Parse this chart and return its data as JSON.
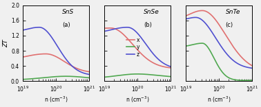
{
  "panels": [
    {
      "title": "SnS",
      "label": "(a)",
      "show_legend": false,
      "curves": {
        "x": {
          "color": "#e07070",
          "peak_log": 19.7,
          "peak_zt": 0.72,
          "start_zt": 0.53,
          "end_zt": 0.22,
          "sigma_l": 0.65,
          "sigma_r": 0.55
        },
        "y": {
          "color": "#50a850",
          "peak_log": 20.3,
          "peak_zt": 0.13,
          "start_zt": 0.03,
          "end_zt": 0.03,
          "sigma_l": 0.7,
          "sigma_r": 0.7
        },
        "z": {
          "color": "#5050d0",
          "peak_log": 19.5,
          "peak_zt": 1.42,
          "start_zt": 1.28,
          "end_zt": 0.15,
          "sigma_l": 0.4,
          "sigma_r": 0.55
        }
      }
    },
    {
      "title": "SnSe",
      "label": "(b)",
      "show_legend": true,
      "curves": {
        "x": {
          "color": "#e07070",
          "peak_log": 19.2,
          "peak_zt": 1.4,
          "start_zt": 1.38,
          "end_zt": 0.33,
          "sigma_l": 0.3,
          "sigma_r": 0.65
        },
        "y": {
          "color": "#50a850",
          "peak_log": 20.0,
          "peak_zt": 0.19,
          "start_zt": 0.08,
          "end_zt": 0.1,
          "sigma_l": 0.6,
          "sigma_r": 0.6
        },
        "z": {
          "color": "#5050d0",
          "peak_log": 19.7,
          "peak_zt": 1.42,
          "start_zt": 1.25,
          "end_zt": 0.32,
          "sigma_l": 0.5,
          "sigma_r": 0.55
        }
      }
    },
    {
      "title": "SnTe",
      "label": "(c)",
      "show_legend": false,
      "curves": {
        "x": {
          "color": "#e07070",
          "peak_log": 19.5,
          "peak_zt": 1.86,
          "start_zt": 1.6,
          "end_zt": 0.25,
          "sigma_l": 0.4,
          "sigma_r": 0.7
        },
        "y": {
          "color": "#50a850",
          "peak_log": 19.5,
          "peak_zt": 1.0,
          "start_zt": 0.9,
          "end_zt": 0.02,
          "sigma_l": 0.3,
          "sigma_r": 0.35
        },
        "z": {
          "color": "#5050d0",
          "peak_log": 19.3,
          "peak_zt": 1.68,
          "start_zt": 1.6,
          "end_zt": 0.32,
          "sigma_l": 0.25,
          "sigma_r": 0.6
        }
      }
    }
  ],
  "xlim": [
    1e+19,
    1e+21
  ],
  "ylim": [
    0,
    2.0
  ],
  "yticks": [
    0,
    0.4,
    0.8,
    1.2,
    1.6,
    2.0
  ],
  "xlabel": "n (cm$^{-3}$)",
  "ylabel": "ZT",
  "background": "#f0f0f0"
}
